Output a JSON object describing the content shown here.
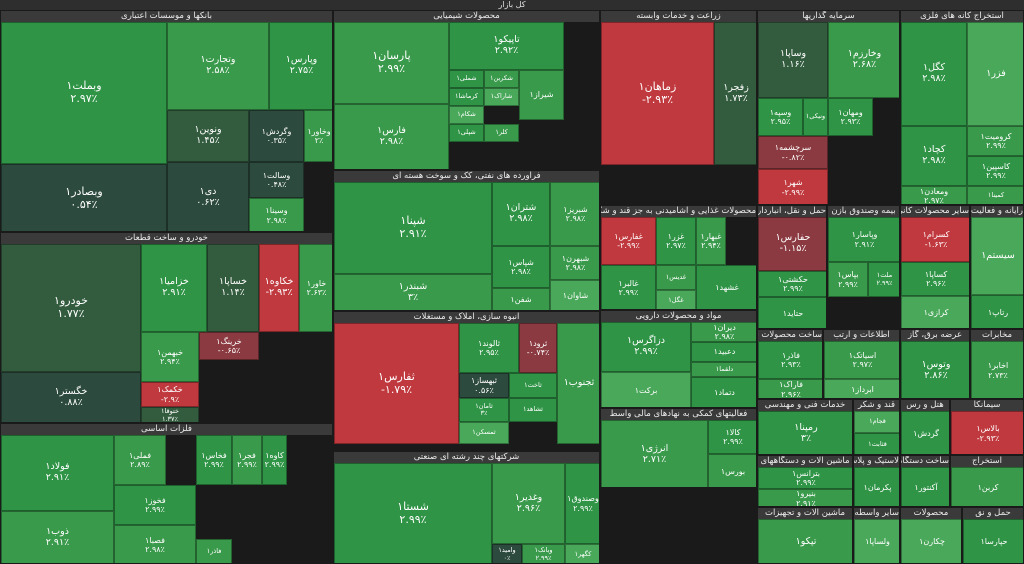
{
  "title": "کل بازار",
  "colors": {
    "strong_green": "#2f9446",
    "green": "#3a9a4c",
    "light_green": "#49a85a",
    "gray_green": "#2d4a3e",
    "dark_green": "#335c3f",
    "red": "#c0393e",
    "dark_red": "#8a3a40",
    "sector_bar": "#3a3a3a",
    "background": "#1a1a1a"
  },
  "chart_data": {
    "type": "treemap",
    "title": "کل بازار",
    "sectors": [
      {
        "name": "بانکها و موسسات اعتباری",
        "tiles": [
          {
            "symbol": "وبملت۱",
            "change": "۲.۹۷٪"
          },
          {
            "symbol": "وتجارت۱",
            "change": "۲.۵۸٪"
          },
          {
            "symbol": "وپارس۱",
            "change": "۲.۷۵٪"
          },
          {
            "symbol": "ونوین۱",
            "change": "۱.۴۵٪"
          },
          {
            "symbol": "وگردش۱",
            "change": "۰.۳۵٪"
          },
          {
            "symbol": "وخاور۱",
            "change": "۲٪"
          },
          {
            "symbol": "وبصادر۱",
            "change": "۰.۵۴٪"
          },
          {
            "symbol": "دی۱",
            "change": "۰.۶۲٪"
          },
          {
            "symbol": "وسالت۱",
            "change": "۰.۴۸٪"
          },
          {
            "symbol": "وسینا۱",
            "change": "۲.۹۸٪"
          }
        ]
      },
      {
        "name": "خودرو و ساخت قطعات",
        "tiles": [
          {
            "symbol": "خودرو۱",
            "change": "۱.۷۷٪"
          },
          {
            "symbol": "خزامیا۱",
            "change": "۲.۹۱٪"
          },
          {
            "symbol": "خساپا۱",
            "change": "۱.۱۴٪"
          },
          {
            "symbol": "خکاوه۱",
            "change": "-۲.۹۳٪"
          },
          {
            "symbol": "خاور۱",
            "change": "۲.۶۳٪"
          },
          {
            "symbol": "خرینگ۱",
            "change": "-۰.۶۵٪"
          },
          {
            "symbol": "خبهمن۱",
            "change": "۲.۹۴٪"
          },
          {
            "symbol": "خگستر۱",
            "change": "۰.۸۸٪"
          },
          {
            "symbol": "خکمک۱",
            "change": "-۲.۹٪"
          },
          {
            "symbol": "ختوقا۱",
            "change": "۱.۳۷٪"
          }
        ]
      },
      {
        "name": "فلزات اساسی",
        "tiles": [
          {
            "symbol": "فولاد۱",
            "change": "۲.۹۱٪"
          },
          {
            "symbol": "فملی۱",
            "change": "۲.۸۹٪"
          },
          {
            "symbol": "فخاس۱",
            "change": "۲.۹۹٪"
          },
          {
            "symbol": "فجر۱",
            "change": "۲.۹۹٪"
          },
          {
            "symbol": "کاوه۱",
            "change": "۲.۹۹٪"
          },
          {
            "symbol": "ذوب۱",
            "change": "۲.۹۱٪"
          },
          {
            "symbol": "فخوز۱",
            "change": "۲.۹۹٪"
          },
          {
            "symbol": "فصبا۱",
            "change": "۲.۹۸٪"
          },
          {
            "symbol": "فاذر۱",
            "change": ""
          }
        ]
      },
      {
        "name": "محصولات شیمیایی",
        "tiles": [
          {
            "symbol": "پارسان۱",
            "change": "۲.۹۹٪"
          },
          {
            "symbol": "تاپیکو۱",
            "change": "۲.۹۲٪"
          },
          {
            "symbol": "فارس۱",
            "change": "۲.۹۸٪"
          },
          {
            "symbol": "شملی۱",
            "change": ""
          },
          {
            "symbol": "شکربن۱",
            "change": ""
          },
          {
            "symbol": "شاراک۱",
            "change": ""
          },
          {
            "symbol": "کرماشا۱",
            "change": ""
          },
          {
            "symbol": "شیراز۱",
            "change": ""
          },
          {
            "symbol": "شکام۱",
            "change": ""
          },
          {
            "symbol": "شپلی۱",
            "change": ""
          },
          {
            "symbol": "کلر۱",
            "change": ""
          }
        ]
      },
      {
        "name": "فراورده های نفتی، کک و سوخت هسته ای",
        "tiles": [
          {
            "symbol": "شپنا۱",
            "change": "۲.۹۱٪"
          },
          {
            "symbol": "شبندر۱",
            "change": "۳٪"
          },
          {
            "symbol": "شتران۱",
            "change": "۲.۹۸٪"
          },
          {
            "symbol": "شبریز۱",
            "change": "۲.۹۸٪"
          },
          {
            "symbol": "شپاس۱",
            "change": "۲.۹۸٪"
          },
          {
            "symbol": "شبهرن۱",
            "change": "۲.۹۸٪"
          },
          {
            "symbol": "شفن۱",
            "change": ""
          },
          {
            "symbol": "شاوان۱",
            "change": ""
          }
        ]
      },
      {
        "name": "انبوه سازی، املاک و مستغلات",
        "tiles": [
          {
            "symbol": "ثفارس۱",
            "change": "-۱.۷۹٪"
          },
          {
            "symbol": "ثالوند۱",
            "change": "۲.۹۵٪"
          },
          {
            "symbol": "ثرود۱",
            "change": "-۰.۷۴٪"
          },
          {
            "symbol": "ثبهساز۱",
            "change": "۰.۵۶٪"
          },
          {
            "symbol": "ثاخت۱",
            "change": ""
          },
          {
            "symbol": "ثامان۱",
            "change": "۳٪"
          },
          {
            "symbol": "ثمسکن۱",
            "change": ""
          },
          {
            "symbol": "ثشاهد۱",
            "change": ""
          },
          {
            "symbol": "ثجنوب۱",
            "change": ""
          }
        ]
      },
      {
        "name": "شرکتهای چند رشته ای صنعتی",
        "tiles": [
          {
            "symbol": "شستا۱",
            "change": "۲.۹۹٪"
          },
          {
            "symbol": "وغدیر۱",
            "change": "۲.۹۶٪"
          },
          {
            "symbol": "وصندوق۱",
            "change": "۲.۹۹٪"
          },
          {
            "symbol": "وبانک۱",
            "change": "۲.۹۹٪"
          },
          {
            "symbol": "وامید۱",
            "change": "۰٪"
          },
          {
            "symbol": "کگهر۱",
            "change": ""
          }
        ]
      },
      {
        "name": "زراعت و خدمات وابسته",
        "tiles": [
          {
            "symbol": "زماهان۱",
            "change": "-۲.۹۳٪"
          },
          {
            "symbol": "زفجر۱",
            "change": "۱.۷۳٪"
          }
        ]
      },
      {
        "name": "سیمان، آهک و گچ",
        "tiles": [
          {
            "symbol": "سیمرغ۱",
            "change": "۲.۹۶٪"
          },
          {
            "symbol": "ساروم۱",
            "change": ""
          },
          {
            "symbol": "سبهان۱",
            "change": ""
          }
        ]
      },
      {
        "name": "محصولات غذایی و آشامیدنی به جز قند و شکر",
        "tiles": [
          {
            "symbol": "غفارس۱",
            "change": "-۲.۹۹٪"
          },
          {
            "symbol": "غزر۱",
            "change": "۲.۹۷٪"
          },
          {
            "symbol": "غبهار۱",
            "change": "۲.۹۴٪"
          },
          {
            "symbol": "غالبر۱",
            "change": "۲.۹۹٪"
          },
          {
            "symbol": "غدیس۱",
            "change": ""
          },
          {
            "symbol": "غگل۱",
            "change": ""
          },
          {
            "symbol": "غشهد۱",
            "change": ""
          }
        ]
      },
      {
        "name": "مواد و محصولات دارویی",
        "tiles": [
          {
            "symbol": "دزاگرس۱",
            "change": "۲.۹۹٪"
          },
          {
            "symbol": "دیران۱",
            "change": "۲.۹۸٪"
          },
          {
            "symbol": "دعبید۱",
            "change": ""
          },
          {
            "symbol": "دلقما۱",
            "change": ""
          },
          {
            "symbol": "برکت۱",
            "change": ""
          },
          {
            "symbol": "دتماد۱",
            "change": ""
          }
        ]
      },
      {
        "name": "فعالیتهای کمکی به نهادهای مالی واسط",
        "tiles": [
          {
            "symbol": "انرژی۱",
            "change": "۲.۷۱٪"
          },
          {
            "symbol": "کالا۱",
            "change": "۲.۹۹٪"
          },
          {
            "symbol": "بورس۱",
            "change": ""
          }
        ]
      },
      {
        "name": "سرمایه گذاریها",
        "tiles": [
          {
            "symbol": "وساپا۱",
            "change": "۱.۱۶٪"
          },
          {
            "symbol": "وخارزم۱",
            "change": "۲.۶۸٪"
          },
          {
            "symbol": "وسپه۱",
            "change": "۲.۹۵٪"
          },
          {
            "symbol": "ونیکی۱",
            "change": ""
          },
          {
            "symbol": "ومهان۱",
            "change": "۲.۹۳٪"
          },
          {
            "symbol": "سرچشمه۱",
            "change": "-۰.۸۲٪"
          },
          {
            "symbol": "شهر۱",
            "change": "-۲.۹۹٪"
          }
        ]
      },
      {
        "name": "حمل و نقل، انبارداری",
        "tiles": [
          {
            "symbol": "حفارس۱",
            "change": "-۱.۱۵٪"
          },
          {
            "symbol": "حکشتی۱",
            "change": "۲.۹۹٪"
          },
          {
            "symbol": "حتاید۱",
            "change": ""
          },
          {
            "symbol": "حسینا۱",
            "change": ""
          }
        ]
      },
      {
        "name": "بیمه وصندوق بازن",
        "tiles": [
          {
            "symbol": "وپاسار۱",
            "change": "۲.۹۱٪"
          },
          {
            "symbol": "بپاس۱",
            "change": "۲.۹۹٪"
          },
          {
            "symbol": "ملت۱",
            "change": "۲.۹۹٪"
          }
        ]
      },
      {
        "name": "سایر محصولات کانی",
        "tiles": [
          {
            "symbol": "کسرام۱",
            "change": "-۱.۶۳٪"
          },
          {
            "symbol": "کساپا۱",
            "change": "۲.۹۶٪"
          },
          {
            "symbol": "کرازی۱",
            "change": ""
          }
        ]
      },
      {
        "name": "استخراج کانه های فلزی",
        "tiles": [
          {
            "symbol": "کگل۱",
            "change": "۲.۹۸٪"
          },
          {
            "symbol": "فزر۱",
            "change": ""
          },
          {
            "symbol": "کچاد۱",
            "change": "۲.۹۸٪"
          },
          {
            "symbol": "کرومیت۱",
            "change": "۲.۹۹٪"
          },
          {
            "symbol": "کاسپین۱",
            "change": "۲.۹۹٪"
          },
          {
            "symbol": "ومعادن۱",
            "change": "۲.۹۷٪"
          },
          {
            "symbol": "کمینا۱",
            "change": ""
          },
          {
            "symbol": "کیال۱",
            "change": ""
          }
        ]
      },
      {
        "name": "رایانه و فعالیت",
        "tiles": [
          {
            "symbol": "سیستم۱",
            "change": ""
          },
          {
            "symbol": "رتاپ۱",
            "change": ""
          }
        ]
      },
      {
        "name": "ساخت محصولات فلزی",
        "tiles": [
          {
            "symbol": "فاذر۱",
            "change": "۲.۹۳٪"
          },
          {
            "symbol": "فاراک۱",
            "change": "۲.۹۶٪"
          },
          {
            "symbol": "چدن۱",
            "change": "-۰.۶۱٪"
          }
        ]
      },
      {
        "name": "اطلاعات و ارتب",
        "tiles": [
          {
            "symbol": "اسیاتک۱",
            "change": "۲.۹۷٪"
          },
          {
            "symbol": "ابرداز۱",
            "change": ""
          }
        ]
      },
      {
        "name": "عرضه برق، گاز",
        "tiles": [
          {
            "symbol": "وتوس۱",
            "change": "۲.۸۶٪"
          }
        ]
      },
      {
        "name": "مخابرات",
        "tiles": [
          {
            "symbol": "اخابر۱",
            "change": "۲.۷۳٪"
          }
        ]
      },
      {
        "name": "خدمات فنی و مهندسی",
        "tiles": [
          {
            "symbol": "رمپنا۱",
            "change": "۳٪"
          },
          {
            "symbol": "وتوسم۱",
            "change": ""
          }
        ]
      },
      {
        "name": "قند و شکر",
        "tiles": [
          {
            "symbol": "قجام۱",
            "change": ""
          },
          {
            "symbol": "قثابت۱",
            "change": ""
          }
        ]
      },
      {
        "name": "هتل و رس",
        "tiles": [
          {
            "symbol": "گردش۱",
            "change": ""
          }
        ]
      },
      {
        "name": "سیمانکا",
        "tiles": [
          {
            "symbol": "بالاس۱",
            "change": "-۲.۹۳٪"
          },
          {
            "symbol": "کاشی۱",
            "change": ""
          }
        ]
      },
      {
        "name": "ماشین آلات و دستگاههای",
        "tiles": [
          {
            "symbol": "بترانس۱",
            "change": "۲.۹۹٪"
          },
          {
            "symbol": "بنیرو۱",
            "change": "۲.۹۱٪"
          }
        ]
      },
      {
        "name": "لاستیک و پلاست",
        "tiles": [
          {
            "symbol": "پکرمان۱",
            "change": ""
          },
          {
            "symbol": "پاسا۱",
            "change": ""
          }
        ]
      },
      {
        "name": "ماشین آلات و تجهیزات",
        "tiles": [
          {
            "symbol": "تپکو۱",
            "change": ""
          },
          {
            "symbol": "تاپیرا۱",
            "change": ""
          }
        ]
      },
      {
        "name": "سایر واسطه گری",
        "tiles": [
          {
            "symbol": "ولساپا۱",
            "change": ""
          }
        ]
      },
      {
        "name": "ساخت دستگاهها",
        "tiles": [
          {
            "symbol": "آکنتور۱",
            "change": ""
          }
        ]
      },
      {
        "name": "استخراج",
        "tiles": [
          {
            "symbol": "کربن۱",
            "change": ""
          }
        ]
      },
      {
        "name": "محصولات",
        "tiles": [
          {
            "symbol": "چکارن۱",
            "change": ""
          }
        ]
      },
      {
        "name": "حمل و نق",
        "tiles": [
          {
            "symbol": "حپارسا۱",
            "change": ""
          }
        ]
      }
    ]
  }
}
